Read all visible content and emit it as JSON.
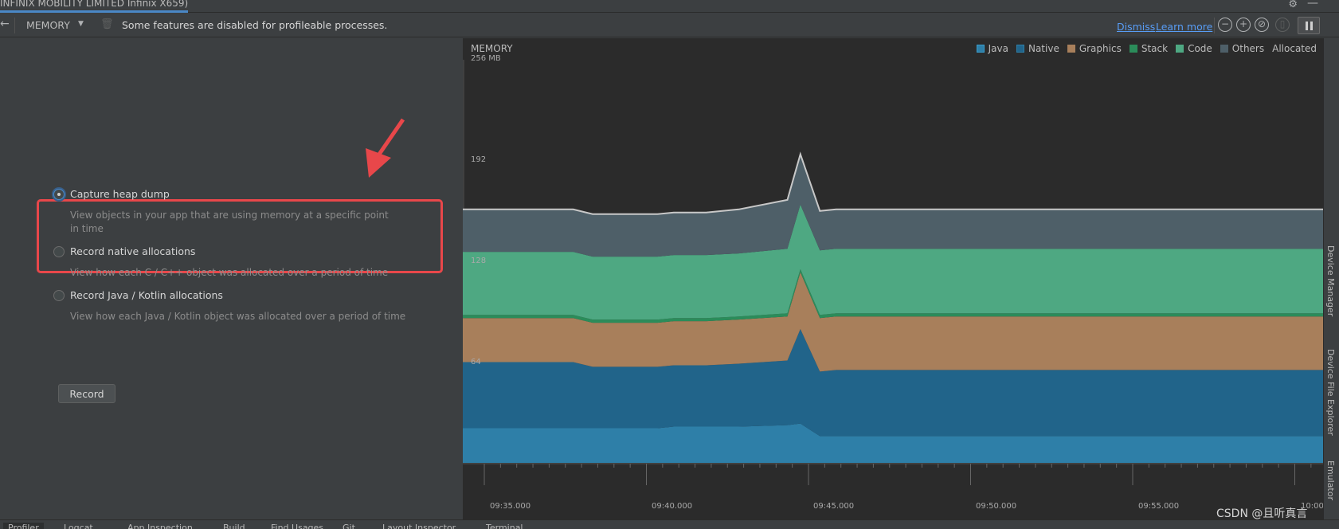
{
  "session": {
    "title": "INFINIX MOBILITY LIMITED Infinix X659)"
  },
  "toolbar": {
    "back_icon": "arrow-left-icon",
    "memory_label": "MEMORY",
    "notice": "Some features are disabled for profileable processes.",
    "dismiss": "Dismiss",
    "learn_more": "Learn more"
  },
  "options": [
    {
      "title": "Capture heap dump",
      "desc": "View objects in your app that are using memory at a specific point in time",
      "selected": true
    },
    {
      "title": "Record native allocations",
      "desc": "View how each C / C++ object was allocated over a period of time",
      "selected": false
    },
    {
      "title": "Record Java / Kotlin allocations",
      "desc": "View how each Java / Kotlin object was allocated over a period of time",
      "selected": false
    }
  ],
  "record_button": "Record",
  "chart": {
    "title": "MEMORY",
    "legend": [
      "Java",
      "Native",
      "Graphics",
      "Stack",
      "Code",
      "Others",
      "Allocated"
    ],
    "y_labels": [
      "256 MB",
      "192",
      "128",
      "64"
    ],
    "x_labels": [
      "09:35.000",
      "09:40.000",
      "09:45.000",
      "09:50.000",
      "09:55.000",
      "10:00"
    ]
  },
  "chart_data": {
    "type": "area",
    "title": "MEMORY",
    "ylabel": "MB",
    "ylim": [
      0,
      256
    ],
    "x": [
      "09:33.5",
      "09:36.9",
      "09:37.5",
      "09:38.5",
      "09:39.5",
      "09:40.0",
      "09:41.0",
      "09:42.0",
      "09:43.5",
      "09:43.9",
      "09:44.5",
      "09:45.0",
      "09:46.0",
      "09:50.0",
      "09:55.0",
      "10:00.0"
    ],
    "series": [
      {
        "name": "Java",
        "color": "#2e7fa8",
        "values": [
          22,
          22,
          22,
          22,
          22,
          23,
          23,
          23,
          24,
          25,
          17,
          17,
          17,
          17,
          17,
          17
        ]
      },
      {
        "name": "Native",
        "color": "#21648a",
        "values": [
          42,
          42,
          39,
          39,
          39,
          39,
          39,
          40,
          41,
          60,
          41,
          42,
          42,
          42,
          42,
          42
        ]
      },
      {
        "name": "Graphics",
        "color": "#a87f5b",
        "values": [
          28,
          28,
          28,
          28,
          28,
          28,
          28,
          28,
          28,
          36,
          34,
          34,
          34,
          34,
          34,
          34
        ]
      },
      {
        "name": "Stack",
        "color": "#2b8c5a",
        "values": [
          2,
          2,
          2,
          2,
          2,
          2,
          2,
          2,
          2,
          2,
          2,
          2,
          2,
          2,
          2,
          2
        ]
      },
      {
        "name": "Code",
        "color": "#4ea882",
        "values": [
          40,
          40,
          40,
          40,
          40,
          40,
          40,
          40,
          41,
          41,
          41,
          41,
          41,
          41,
          41,
          41
        ]
      },
      {
        "name": "Others",
        "color": "#4e5f68",
        "values": [
          27,
          27,
          27,
          27,
          27,
          27,
          27,
          28,
          31,
          32,
          25,
          25,
          25,
          25,
          25,
          25
        ]
      }
    ],
    "allocated_color": "#c8c8c8",
    "legend_position": "top-right",
    "grid": false
  },
  "right_strip": [
    "Device Manager",
    "Device File Explorer",
    "Emulator"
  ],
  "bottom_tabs": [
    "Profiler",
    "Logcat",
    "App Inspection",
    "Build",
    "Find Usages",
    "Git",
    "Layout Inspector",
    "Terminal"
  ],
  "watermark": "CSDN @且听真言"
}
